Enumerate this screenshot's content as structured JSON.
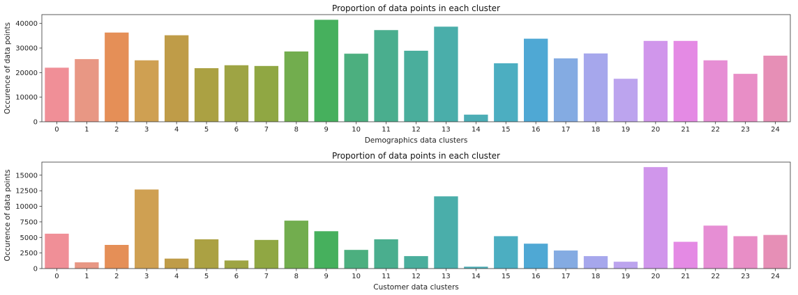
{
  "chart_data": [
    {
      "type": "bar",
      "title": "Proportion of data points in each cluster",
      "xlabel": "Demographics data clusters",
      "ylabel": "Occurence of data points",
      "categories": [
        "0",
        "1",
        "2",
        "3",
        "4",
        "5",
        "6",
        "7",
        "8",
        "9",
        "10",
        "11",
        "12",
        "13",
        "14",
        "15",
        "16",
        "17",
        "18",
        "19",
        "20",
        "21",
        "22",
        "23",
        "24"
      ],
      "values": [
        22000,
        25500,
        36300,
        25000,
        35200,
        21800,
        23000,
        22700,
        28600,
        41500,
        27700,
        37300,
        28900,
        38700,
        2900,
        23800,
        33800,
        25800,
        27800,
        17500,
        32900,
        32900,
        25000,
        19500,
        26900
      ],
      "ylim": [
        0,
        43600
      ],
      "yticks": [
        0,
        10000,
        20000,
        30000,
        40000
      ],
      "ytick_labels": [
        "0",
        "10000",
        "20000",
        "30000",
        "40000"
      ],
      "grid": false,
      "colors": [
        "#f08f97",
        "#e89784",
        "#e58f57",
        "#cfa052",
        "#bf9c48",
        "#aba143",
        "#9ea444",
        "#90a743",
        "#72ad4e",
        "#46b05d",
        "#4caf7f",
        "#4aae8e",
        "#4aae9c",
        "#4aaeaa",
        "#4cadb5",
        "#4caec1",
        "#4fa8d4",
        "#84abe2",
        "#a6a7ec",
        "#bca4ee",
        "#d096eb",
        "#e48ae4",
        "#e68ed4",
        "#e88ec6",
        "#e68fb6"
      ]
    },
    {
      "type": "bar",
      "title": "Proportion of data points in each cluster",
      "xlabel": "Customer data clusters",
      "ylabel": "Occurence of data points",
      "categories": [
        "0",
        "1",
        "2",
        "3",
        "4",
        "5",
        "6",
        "7",
        "8",
        "9",
        "10",
        "11",
        "12",
        "13",
        "14",
        "15",
        "16",
        "17",
        "18",
        "19",
        "20",
        "21",
        "22",
        "23",
        "24"
      ],
      "values": [
        5600,
        1000,
        3800,
        12700,
        1600,
        4700,
        1300,
        4600,
        7700,
        6000,
        3000,
        4700,
        2000,
        11600,
        300,
        5200,
        4000,
        2900,
        2000,
        1100,
        16300,
        4300,
        6900,
        5200,
        5400
      ],
      "ylim": [
        0,
        17100
      ],
      "yticks": [
        0,
        2500,
        5000,
        7500,
        10000,
        12500,
        15000
      ],
      "ytick_labels": [
        "0",
        "2500",
        "5000",
        "7500",
        "10000",
        "12500",
        "15000"
      ],
      "grid": false,
      "colors": [
        "#f08f97",
        "#e89784",
        "#e58f57",
        "#cfa052",
        "#bf9c48",
        "#aba143",
        "#9ea444",
        "#90a743",
        "#72ad4e",
        "#46b05d",
        "#4caf7f",
        "#4aae8e",
        "#4aae9c",
        "#4aaeaa",
        "#4cadb5",
        "#4caec1",
        "#4fa8d4",
        "#84abe2",
        "#a6a7ec",
        "#bca4ee",
        "#d096eb",
        "#e48ae4",
        "#e68ed4",
        "#e88ec6",
        "#e68fb6"
      ]
    }
  ]
}
